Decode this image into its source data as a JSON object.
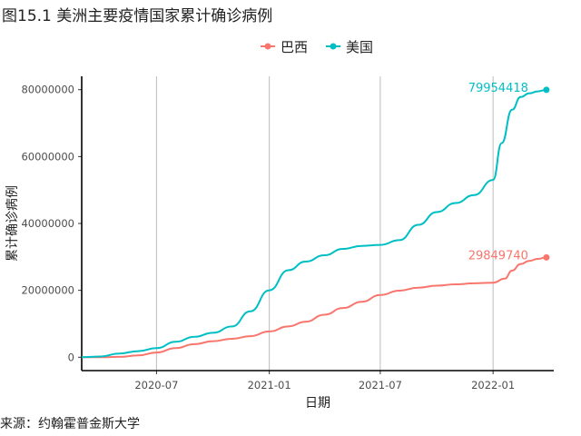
{
  "figure": {
    "title": "图15.1 美洲主要疫情国家累计确诊病例",
    "source": "来源：约翰霍普金斯大学"
  },
  "chart_data": {
    "type": "line",
    "xlabel": "日期",
    "ylabel": "累计确诊病例",
    "x_ticks": [
      "2020-07",
      "2021-01",
      "2021-07",
      "2022-01"
    ],
    "y_ticks": [
      "0",
      "20000000",
      "40000000",
      "60000000",
      "80000000"
    ],
    "xlim": [
      "2020-03-01",
      "2022-04-10"
    ],
    "ylim": [
      0,
      80000000
    ],
    "grid": "vertical-major",
    "legend_position": "top",
    "series": [
      {
        "name": "巴西",
        "color": "#F8766D",
        "end_label": "29849740",
        "points": [
          [
            "2020-03-01",
            0
          ],
          [
            "2020-04-01",
            6000
          ],
          [
            "2020-05-01",
            90000
          ],
          [
            "2020-06-01",
            530000
          ],
          [
            "2020-07-01",
            1400000
          ],
          [
            "2020-08-01",
            2700000
          ],
          [
            "2020-09-01",
            3900000
          ],
          [
            "2020-10-01",
            4800000
          ],
          [
            "2020-11-01",
            5500000
          ],
          [
            "2020-12-01",
            6300000
          ],
          [
            "2021-01-01",
            7700000
          ],
          [
            "2021-02-01",
            9200000
          ],
          [
            "2021-03-01",
            10600000
          ],
          [
            "2021-04-01",
            12700000
          ],
          [
            "2021-05-01",
            14700000
          ],
          [
            "2021-06-01",
            16600000
          ],
          [
            "2021-07-01",
            18600000
          ],
          [
            "2021-08-01",
            19900000
          ],
          [
            "2021-09-01",
            20800000
          ],
          [
            "2021-10-01",
            21400000
          ],
          [
            "2021-11-01",
            21800000
          ],
          [
            "2021-12-01",
            22100000
          ],
          [
            "2022-01-01",
            22300000
          ],
          [
            "2022-01-20",
            23500000
          ],
          [
            "2022-02-01",
            25900000
          ],
          [
            "2022-02-15",
            27900000
          ],
          [
            "2022-03-01",
            28800000
          ],
          [
            "2022-03-15",
            29400000
          ],
          [
            "2022-03-29",
            29849740
          ]
        ]
      },
      {
        "name": "美国",
        "color": "#00BFC4",
        "end_label": "79954418",
        "points": [
          [
            "2020-03-01",
            0
          ],
          [
            "2020-04-01",
            200000
          ],
          [
            "2020-05-01",
            1100000
          ],
          [
            "2020-06-01",
            1800000
          ],
          [
            "2020-07-01",
            2700000
          ],
          [
            "2020-08-01",
            4600000
          ],
          [
            "2020-09-01",
            6100000
          ],
          [
            "2020-10-01",
            7300000
          ],
          [
            "2020-11-01",
            9200000
          ],
          [
            "2020-12-01",
            13700000
          ],
          [
            "2021-01-01",
            20000000
          ],
          [
            "2021-02-01",
            26000000
          ],
          [
            "2021-03-01",
            28600000
          ],
          [
            "2021-04-01",
            30500000
          ],
          [
            "2021-05-01",
            32400000
          ],
          [
            "2021-06-01",
            33300000
          ],
          [
            "2021-07-01",
            33600000
          ],
          [
            "2021-08-01",
            35000000
          ],
          [
            "2021-09-01",
            39600000
          ],
          [
            "2021-10-01",
            43400000
          ],
          [
            "2021-11-01",
            46100000
          ],
          [
            "2021-12-01",
            48500000
          ],
          [
            "2022-01-01",
            53000000
          ],
          [
            "2022-01-15",
            64000000
          ],
          [
            "2022-02-01",
            74000000
          ],
          [
            "2022-02-15",
            77800000
          ],
          [
            "2022-03-01",
            78900000
          ],
          [
            "2022-03-15",
            79500000
          ],
          [
            "2022-03-29",
            79954418
          ]
        ]
      }
    ]
  }
}
